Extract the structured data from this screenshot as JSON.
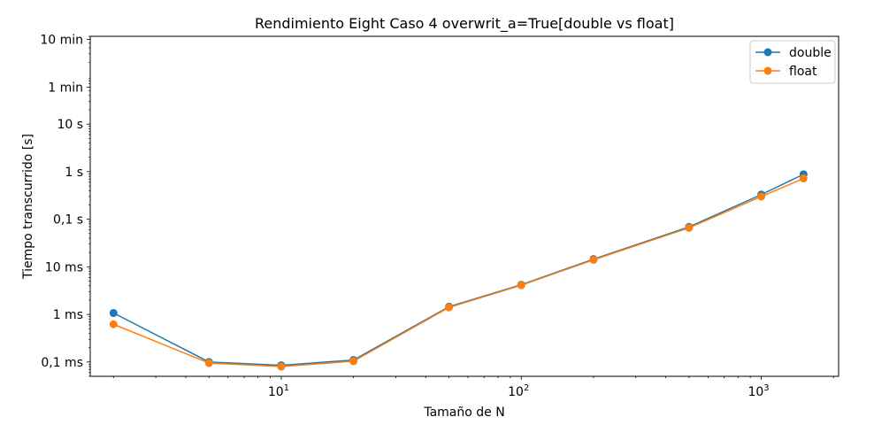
{
  "chart_data": {
    "type": "line",
    "title": "Rendimiento Eight Caso 4 overwrit_a=True[double vs float]",
    "xlabel": "Tamaño de N",
    "ylabel": "Tiempo transcurrido [s]",
    "xscale": "log",
    "yscale": "log",
    "xlim": [
      1.6,
      2100
    ],
    "ylim": [
      5e-05,
      700
    ],
    "grid": false,
    "legend_position": "top-right",
    "x_ticks": [
      {
        "value": 10,
        "base": "10",
        "exp": "1"
      },
      {
        "value": 100,
        "base": "10",
        "exp": "2"
      },
      {
        "value": 1000,
        "base": "10",
        "exp": "3"
      }
    ],
    "y_ticks": [
      {
        "value": 0.0001,
        "label": "0,1 ms"
      },
      {
        "value": 0.001,
        "label": "1 ms"
      },
      {
        "value": 0.01,
        "label": "10 ms"
      },
      {
        "value": 0.1,
        "label": "0,1 s"
      },
      {
        "value": 1,
        "label": "1 s"
      },
      {
        "value": 10,
        "label": "10 s"
      },
      {
        "value": 60,
        "label": "1 min"
      },
      {
        "value": 600,
        "label": "10 min"
      }
    ],
    "x": [
      2,
      5,
      10,
      20,
      50,
      100,
      200,
      500,
      1000,
      1500
    ],
    "series": [
      {
        "name": "double",
        "color": "#1f77b4",
        "values": [
          0.00107,
          0.0001,
          8.5e-05,
          0.00011,
          0.00145,
          0.0042,
          0.0145,
          0.069,
          0.33,
          0.88
        ]
      },
      {
        "name": "float",
        "color": "#ff7f0e",
        "values": [
          0.00062,
          9.5e-05,
          8e-05,
          0.000104,
          0.0014,
          0.0041,
          0.014,
          0.066,
          0.3,
          0.72
        ]
      }
    ]
  }
}
